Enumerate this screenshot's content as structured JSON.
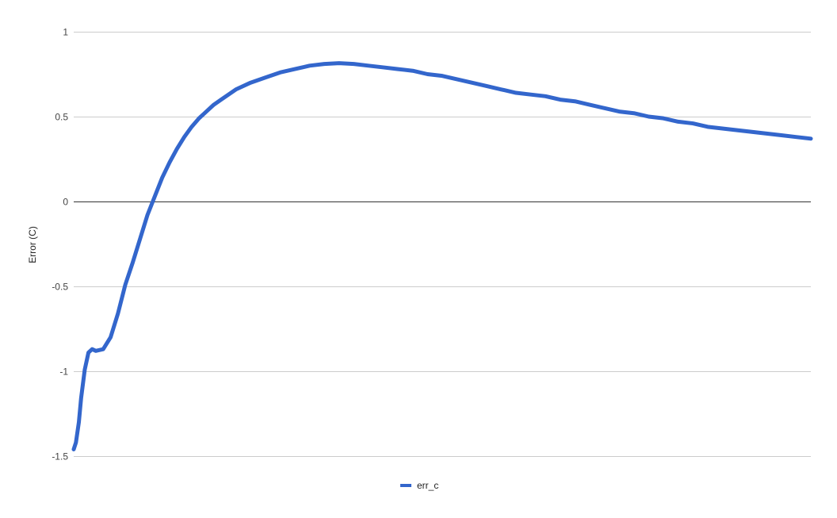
{
  "chart_data": {
    "type": "line",
    "title": "",
    "xlabel": "",
    "ylabel": "Error (C)",
    "ylim": [
      -1.5,
      1
    ],
    "xlim": [
      0,
      100
    ],
    "y_ticks": [
      {
        "value": 1,
        "label": "1"
      },
      {
        "value": 0.5,
        "label": "0.5"
      },
      {
        "value": 0,
        "label": "0"
      },
      {
        "value": -0.5,
        "label": "-0.5"
      },
      {
        "value": -1,
        "label": "-1"
      },
      {
        "value": -1.5,
        "label": "-1.5"
      }
    ],
    "grid": true,
    "legend_position": "bottom",
    "series": [
      {
        "name": "err_c",
        "color": "#3366cc",
        "x": [
          0,
          0.3,
          0.7,
          1,
          1.5,
          2,
          2.5,
          3,
          4,
          5,
          6,
          7,
          8,
          9,
          10,
          11,
          12,
          13,
          14,
          15,
          16,
          17,
          18,
          19,
          20,
          21,
          22,
          24,
          26,
          28,
          30,
          32,
          34,
          36,
          38,
          40,
          42,
          44,
          46,
          48,
          50,
          52,
          54,
          56,
          58,
          60,
          62,
          64,
          66,
          68,
          70,
          72,
          74,
          76,
          78,
          80,
          82,
          84,
          86,
          88,
          90,
          92,
          94,
          96,
          98,
          100
        ],
        "values": [
          -1.46,
          -1.42,
          -1.3,
          -1.16,
          -0.99,
          -0.89,
          -0.87,
          -0.88,
          -0.87,
          -0.8,
          -0.66,
          -0.49,
          -0.36,
          -0.22,
          -0.08,
          0.03,
          0.14,
          0.23,
          0.31,
          0.38,
          0.44,
          0.49,
          0.53,
          0.57,
          0.6,
          0.63,
          0.66,
          0.7,
          0.73,
          0.76,
          0.78,
          0.8,
          0.81,
          0.815,
          0.81,
          0.8,
          0.79,
          0.78,
          0.77,
          0.75,
          0.74,
          0.72,
          0.7,
          0.68,
          0.66,
          0.64,
          0.63,
          0.62,
          0.6,
          0.59,
          0.57,
          0.55,
          0.53,
          0.52,
          0.5,
          0.49,
          0.47,
          0.46,
          0.44,
          0.43,
          0.42,
          0.41,
          0.4,
          0.39,
          0.38,
          0.37
        ]
      }
    ]
  }
}
